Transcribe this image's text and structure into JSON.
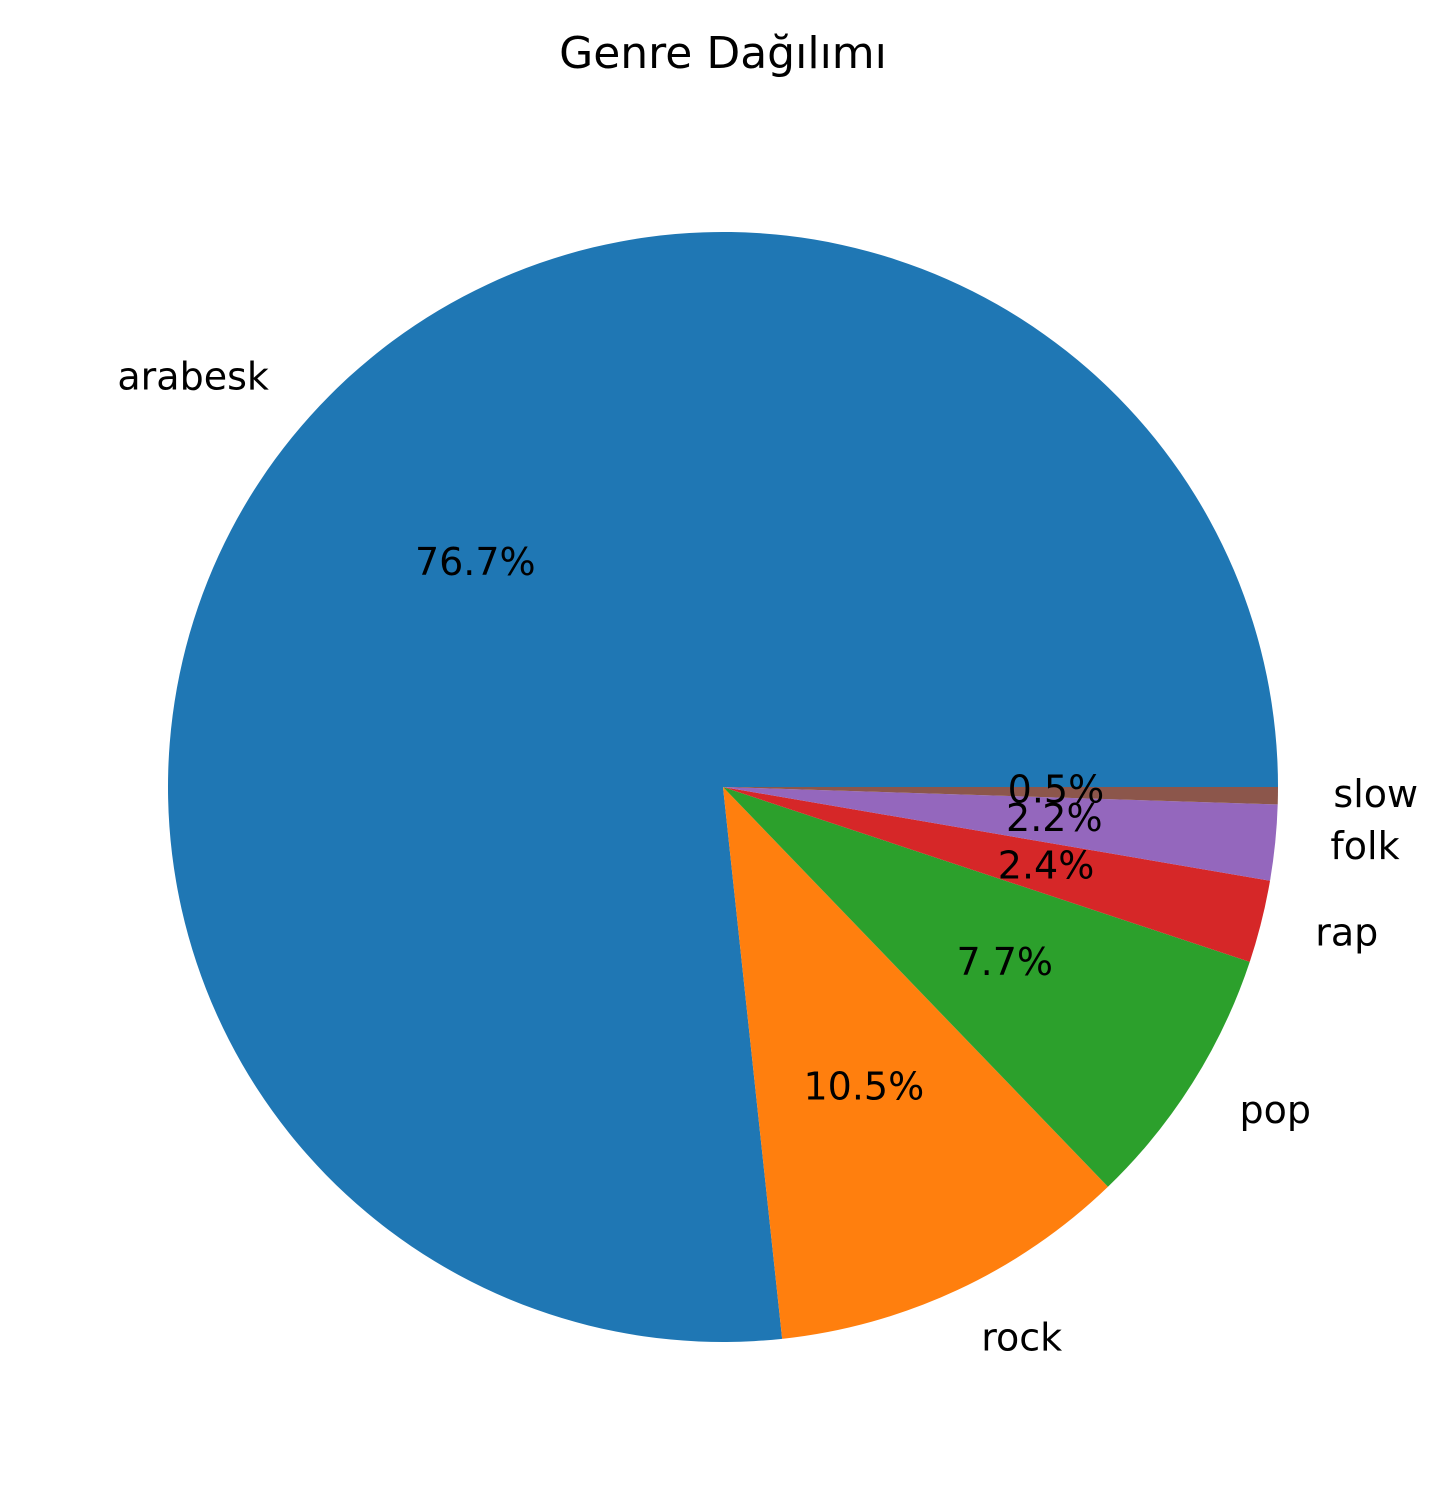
{
  "chart_data": {
    "type": "pie",
    "title": "Genre Dağılımı",
    "categories": [
      "arabesk",
      "rock",
      "pop",
      "rap",
      "folk",
      "slow"
    ],
    "values": [
      76.7,
      10.5,
      7.7,
      2.4,
      2.2,
      0.5
    ],
    "value_labels": [
      "76.7%",
      "10.5%",
      "7.7%",
      "2.4%",
      "2.2%",
      "0.5%"
    ],
    "colors": [
      "#1f77b4",
      "#ff7f0e",
      "#2ca02c",
      "#d62728",
      "#9467bd",
      "#8c564b"
    ],
    "start_angle_deg": 0,
    "direction": "counterclockwise"
  }
}
